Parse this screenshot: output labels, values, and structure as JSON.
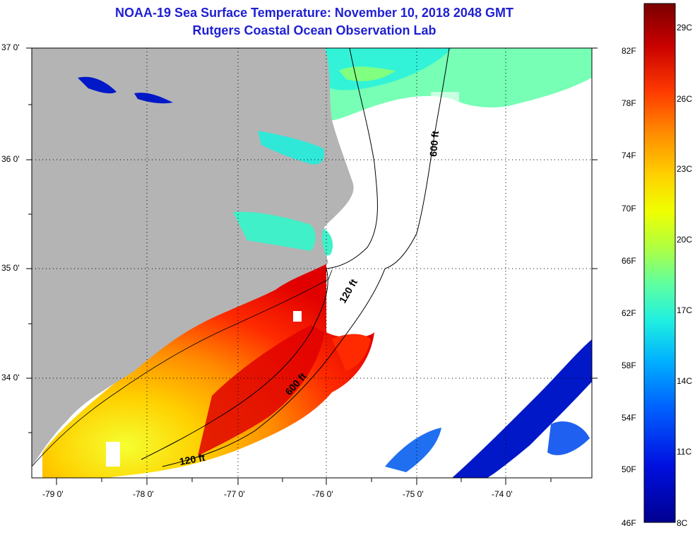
{
  "header": {
    "title_line1": "NOAA-19 Sea Surface Temperature:  November 10, 2018 2048 GMT",
    "title_line2": "Rutgers Coastal Ocean Observation Lab"
  },
  "map": {
    "lat_labels": [
      "37 0'",
      "36 0'",
      "35 0'",
      "34 0'"
    ],
    "lon_labels": [
      "-79 0'",
      "-78 0'",
      "-77 0'",
      "-76 0'",
      "-75 0'",
      "-74 0'"
    ],
    "contour_labels": [
      "600 ft",
      "120 ft",
      "600 ft",
      "120 ft"
    ],
    "land_color": "#b4b4b4"
  },
  "colorbar": {
    "fahrenheit_labels": [
      "82F",
      "78F",
      "74F",
      "70F",
      "66F",
      "62F",
      "58F",
      "54F",
      "50F",
      "46F"
    ],
    "celsius_labels": [
      "29C",
      "26C",
      "23C",
      "20C",
      "17C",
      "14C",
      "11C",
      "8C"
    ],
    "colors": [
      "#7a0000",
      "#c80000",
      "#ff3a00",
      "#ff8c00",
      "#ffd000",
      "#f0ff00",
      "#b0ff40",
      "#60ffa0",
      "#20f0e0",
      "#00b0ff",
      "#0060ff",
      "#0010e0",
      "#000090"
    ]
  }
}
